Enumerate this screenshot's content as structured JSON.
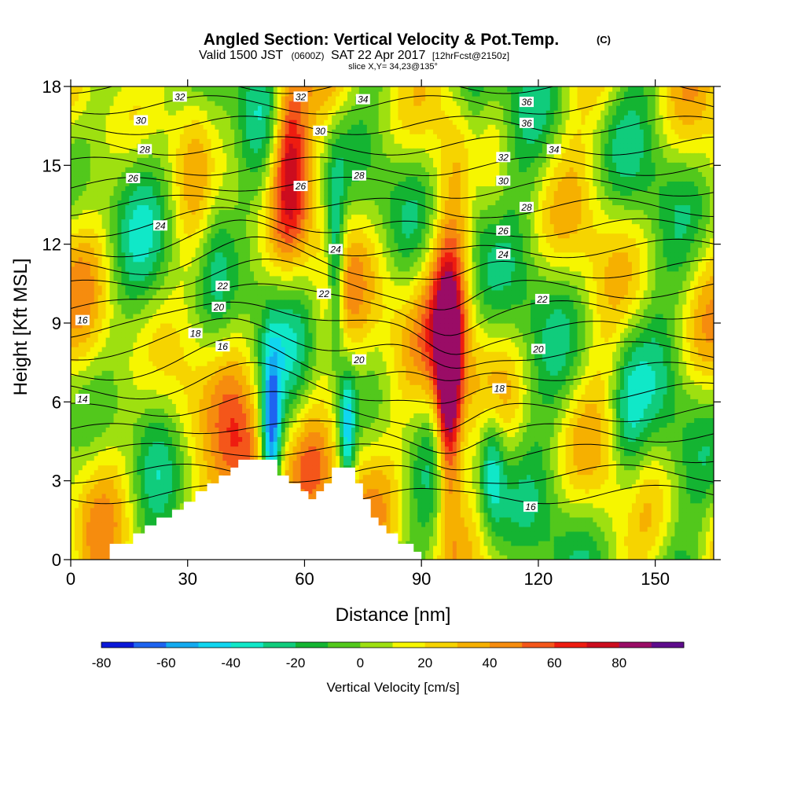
{
  "title": {
    "main": "Angled Section: Vertical Velocity & Pot.Temp.",
    "main_units": "(C)",
    "valid_prefix": "Valid 1500 JST",
    "valid_z": "(0600Z)",
    "valid_date": "SAT 22 Apr 2017",
    "forecast": "[12hrFcst@2150z]",
    "slice": "slice X,Y= 34,23@135°"
  },
  "chart_data": {
    "type": "heatmap",
    "xlabel": "Distance [nm]",
    "ylabel": "Height [Kft MSL]",
    "xlim": [
      0,
      165
    ],
    "ylim": [
      0,
      18
    ],
    "x_ticks": [
      "0",
      "30",
      "60",
      "90",
      "120",
      "150"
    ],
    "y_ticks": [
      "0",
      "3",
      "6",
      "9",
      "12",
      "15",
      "18"
    ],
    "colorbar": {
      "label": "Vertical Velocity [cm/s]",
      "tick_labels": [
        "-80",
        "-60",
        "-40",
        "-20",
        "0",
        "20",
        "40",
        "60",
        "80"
      ],
      "levels": [
        -80,
        -70,
        -60,
        -50,
        -40,
        -30,
        -20,
        -10,
        0,
        10,
        20,
        30,
        40,
        50,
        60,
        70,
        80,
        90
      ],
      "colors": [
        "#0a18d8",
        "#1e64f0",
        "#14aaf0",
        "#10d6f0",
        "#10e8c8",
        "#10cc7c",
        "#14b432",
        "#52c81c",
        "#9ee010",
        "#f6f600",
        "#f6d400",
        "#f6b000",
        "#f68c0e",
        "#f4561a",
        "#ee1c10",
        "#cc0c1e",
        "#9a0c66",
        "#5e0c8c"
      ]
    },
    "terrain_profile": {
      "x": [
        0,
        10,
        16,
        19,
        22,
        26,
        29,
        32,
        35,
        38,
        41,
        43,
        45,
        47,
        49,
        53,
        56,
        59,
        61,
        63,
        65,
        67,
        71,
        73,
        75,
        77,
        79,
        81,
        84,
        88,
        90,
        165
      ],
      "y": [
        0,
        0.6,
        1.0,
        1.3,
        1.6,
        1.9,
        2.2,
        2.6,
        2.9,
        3.2,
        3.5,
        3.8,
        3.8,
        3.8,
        3.8,
        3.2,
        2.9,
        2.6,
        2.3,
        2.6,
        2.9,
        3.5,
        3.5,
        2.9,
        2.3,
        1.6,
        1.3,
        1.0,
        0.6,
        0.3,
        0,
        0
      ]
    },
    "vertical_velocity_features": [
      {
        "kind": "updraft",
        "x": 97,
        "y_range": [
          1.2,
          11.5
        ],
        "peak": 90
      },
      {
        "kind": "updraft",
        "x": 57,
        "y_range": [
          11.5,
          18
        ],
        "peak": 60
      },
      {
        "kind": "downdraft",
        "x": 52,
        "y_range": [
          3.5,
          8
        ],
        "peak": -40
      },
      {
        "kind": "downdraft",
        "x": 71,
        "y_range": [
          3.5,
          7
        ],
        "peak": -40
      },
      {
        "kind": "downdraft",
        "x": 68,
        "y_range": [
          9,
          13
        ],
        "peak": -40
      },
      {
        "kind": "downdraft",
        "x": 108,
        "y_range": [
          2,
          5.5
        ],
        "peak": -40
      }
    ],
    "potential_temperature_contours": {
      "units": "C",
      "interval": 1,
      "labels": [
        {
          "text": "14",
          "x": 3,
          "y": 6.1
        },
        {
          "text": "16",
          "x": 3,
          "y": 9.1
        },
        {
          "text": "16",
          "x": 39,
          "y": 8.1
        },
        {
          "text": "16",
          "x": 118,
          "y": 2.0
        },
        {
          "text": "18",
          "x": 32,
          "y": 8.6
        },
        {
          "text": "18",
          "x": 110,
          "y": 6.5
        },
        {
          "text": "20",
          "x": 38,
          "y": 9.6
        },
        {
          "text": "20",
          "x": 74,
          "y": 7.6
        },
        {
          "text": "20",
          "x": 120,
          "y": 8.0
        },
        {
          "text": "22",
          "x": 39,
          "y": 10.4
        },
        {
          "text": "22",
          "x": 65,
          "y": 10.1
        },
        {
          "text": "22",
          "x": 121,
          "y": 9.9
        },
        {
          "text": "24",
          "x": 23,
          "y": 12.7
        },
        {
          "text": "24",
          "x": 68,
          "y": 11.8
        },
        {
          "text": "24",
          "x": 111,
          "y": 11.6
        },
        {
          "text": "26",
          "x": 16,
          "y": 14.5
        },
        {
          "text": "26",
          "x": 59,
          "y": 14.2
        },
        {
          "text": "26",
          "x": 111,
          "y": 12.5
        },
        {
          "text": "28",
          "x": 19,
          "y": 15.6
        },
        {
          "text": "28",
          "x": 74,
          "y": 14.6
        },
        {
          "text": "28",
          "x": 117,
          "y": 13.4
        },
        {
          "text": "30",
          "x": 18,
          "y": 16.7
        },
        {
          "text": "30",
          "x": 64,
          "y": 16.3
        },
        {
          "text": "30",
          "x": 111,
          "y": 14.4
        },
        {
          "text": "32",
          "x": 28,
          "y": 17.6
        },
        {
          "text": "32",
          "x": 59,
          "y": 17.6
        },
        {
          "text": "32",
          "x": 111,
          "y": 15.3
        },
        {
          "text": "34",
          "x": 75,
          "y": 17.5
        },
        {
          "text": "34",
          "x": 124,
          "y": 15.6
        },
        {
          "text": "36",
          "x": 117,
          "y": 16.6
        },
        {
          "text": "36",
          "x": 117,
          "y": 17.4
        }
      ]
    }
  }
}
